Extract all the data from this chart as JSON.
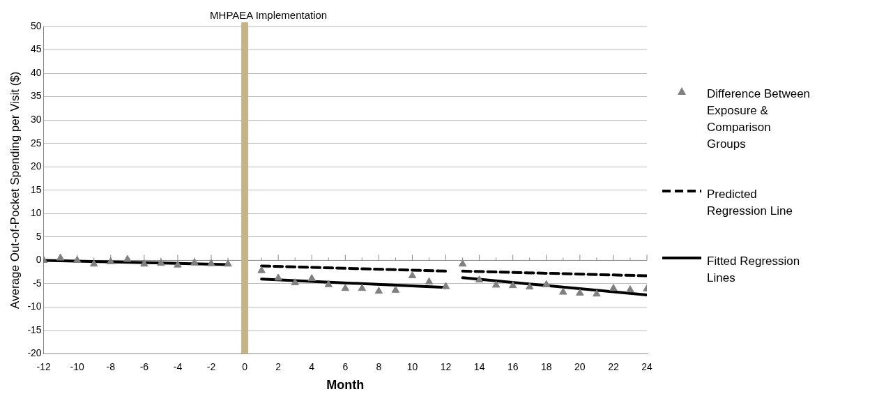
{
  "chart_data": {
    "type": "scatter",
    "xlabel": "Month",
    "ylabel": "Average Out-of-Pocket Spending per Visit ($)",
    "xlim": [
      -12,
      24
    ],
    "xticks": [
      -12,
      {
        "value": -11,
        "label": null
      },
      -10,
      {
        "value": -9,
        "label": null
      },
      -8,
      {
        "value": -7,
        "label": null
      },
      -6,
      {
        "value": -5,
        "label": null
      },
      -4,
      {
        "value": -3,
        "label": null
      },
      -2,
      {
        "value": -1,
        "label": null
      },
      0,
      {
        "value": 1,
        "label": null
      },
      2,
      {
        "value": 3,
        "label": null
      },
      4,
      {
        "value": 5,
        "label": null
      },
      6,
      {
        "value": 7,
        "label": null
      },
      8,
      {
        "value": 9,
        "label": null
      },
      10,
      {
        "value": 11,
        "label": null
      },
      12,
      {
        "value": 13,
        "label": null
      },
      14,
      {
        "value": 15,
        "label": null
      },
      16,
      {
        "value": 17,
        "label": null
      },
      18,
      {
        "value": 19,
        "label": null
      },
      20,
      {
        "value": 21,
        "label": null
      },
      22,
      {
        "value": 23,
        "label": null
      },
      24
    ],
    "ylim": [
      -20,
      50
    ],
    "yticks": [
      -20,
      -15,
      -10,
      -5,
      0,
      5,
      10,
      15,
      20,
      25,
      30,
      35,
      40,
      45,
      50
    ],
    "grid": "y",
    "legend": "right",
    "ref_lines": [
      {
        "axis": "x",
        "value": 0,
        "label": "MHPAEA Implementation",
        "color": "#c4b48c"
      }
    ],
    "series": [
      {
        "name": "Difference Between Exposure & Comparison Groups",
        "marker": "triangle",
        "color": "#808080",
        "x": [
          -12,
          -11,
          -10,
          -9,
          -8,
          -7,
          -6,
          -5,
          -4,
          -3,
          -2,
          -1,
          1,
          2,
          3,
          4,
          5,
          6,
          7,
          8,
          9,
          10,
          11,
          12,
          13,
          14,
          15,
          16,
          17,
          18,
          19,
          20,
          21,
          22,
          23,
          24
        ],
        "values": [
          0,
          0.5,
          0,
          -0.8,
          -0.3,
          0.2,
          -0.8,
          -0.6,
          -1,
          -0.5,
          -0.7,
          -0.8,
          -2.2,
          -3.8,
          -4.8,
          -3.9,
          -5.2,
          -6,
          -6,
          -6.6,
          -6.4,
          -3.3,
          -4.6,
          -5.6,
          -0.8,
          -4.2,
          -5.3,
          -5.4,
          -5.7,
          -5.2,
          -6.8,
          -7,
          -7.2,
          -6,
          -6.3,
          -6.1
        ]
      },
      {
        "name": "Predicted Regression Line",
        "type": "line",
        "line_style": "dashed",
        "marker": "none",
        "color": "#000000",
        "x": [
          1,
          12,
          12.5,
          13,
          24
        ],
        "values": [
          -1.2,
          -2.3,
          null,
          -2.3,
          -3.3
        ]
      },
      {
        "name": "Fitted Regression Lines",
        "type": "line",
        "line_style": "solid",
        "marker": "none",
        "color": "#000000",
        "x": [
          -12,
          -1,
          0,
          1,
          12,
          12.5,
          13,
          24
        ],
        "values": [
          0,
          -0.9,
          null,
          -4,
          -5.8,
          null,
          -3.7,
          -7.4
        ]
      }
    ]
  }
}
